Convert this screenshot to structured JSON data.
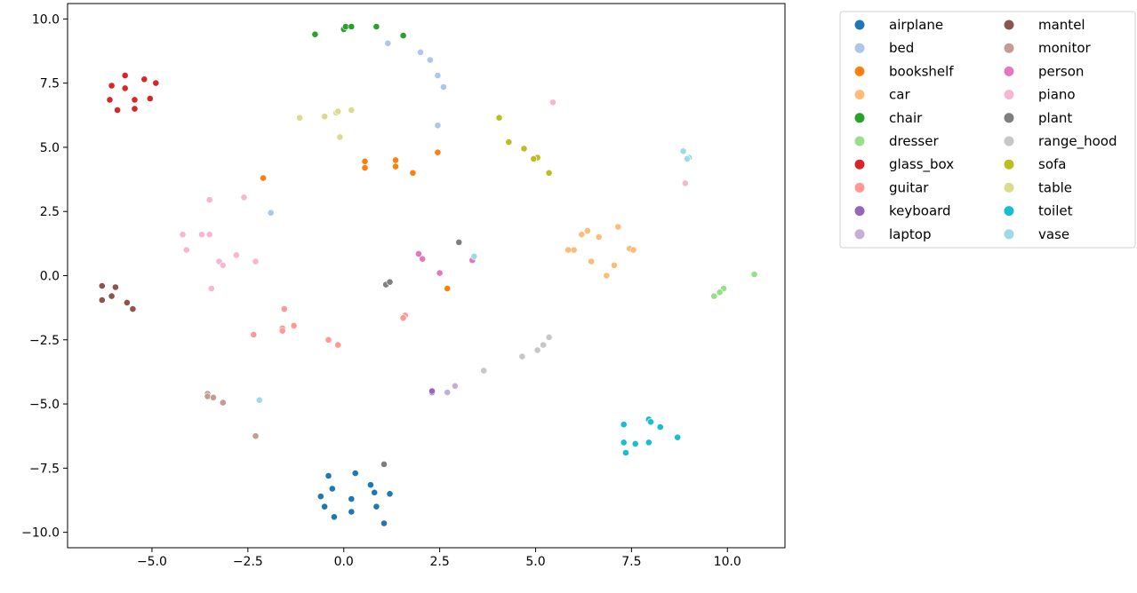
{
  "chart_data": {
    "type": "scatter",
    "title": "",
    "xlabel": "",
    "ylabel": "",
    "xlim": [
      -7.2,
      11.5
    ],
    "ylim": [
      -10.6,
      10.6
    ],
    "x_ticks": [
      -5.0,
      -2.5,
      0.0,
      2.5,
      5.0,
      7.5,
      10.0
    ],
    "x_tick_labels": [
      "−5.0",
      "−2.5",
      "0.0",
      "2.5",
      "5.0",
      "7.5",
      "10.0"
    ],
    "y_ticks": [
      10.0,
      7.5,
      5.0,
      2.5,
      0.0,
      -2.5,
      -5.0,
      -7.5,
      -10.0
    ],
    "y_tick_labels": [
      "10.0",
      "7.5",
      "5.0",
      "2.5",
      "0.0",
      "−2.5",
      "−5.0",
      "−7.5",
      "−10.0"
    ],
    "grid": false,
    "legend_position": "outside right top",
    "legend_columns": 2,
    "series": [
      {
        "name": "airplane",
        "color": "#1f77b4",
        "points": [
          [
            -0.4,
            -7.8
          ],
          [
            0.3,
            -7.7
          ],
          [
            -0.3,
            -8.3
          ],
          [
            0.7,
            -8.15
          ],
          [
            0.8,
            -8.45
          ],
          [
            1.2,
            -8.5
          ],
          [
            -0.6,
            -8.6
          ],
          [
            0.2,
            -8.7
          ],
          [
            -0.5,
            -9.0
          ],
          [
            0.85,
            -9.0
          ],
          [
            0.2,
            -9.2
          ],
          [
            -0.25,
            -9.4
          ],
          [
            1.05,
            -9.65
          ]
        ]
      },
      {
        "name": "bed",
        "color": "#aec7e8",
        "points": [
          [
            1.15,
            9.05
          ],
          [
            2.0,
            8.7
          ],
          [
            2.25,
            8.4
          ],
          [
            2.45,
            7.8
          ],
          [
            2.6,
            7.35
          ],
          [
            2.45,
            5.85
          ],
          [
            -1.9,
            2.45
          ]
        ]
      },
      {
        "name": "bookshelf",
        "color": "#ff7f0e",
        "points": [
          [
            0.55,
            4.45
          ],
          [
            0.55,
            4.2
          ],
          [
            1.35,
            4.5
          ],
          [
            1.35,
            4.25
          ],
          [
            1.8,
            4.0
          ],
          [
            2.45,
            4.8
          ],
          [
            -2.1,
            3.8
          ],
          [
            2.7,
            -0.5
          ]
        ]
      },
      {
        "name": "car",
        "color": "#ffbb78",
        "points": [
          [
            7.15,
            1.9
          ],
          [
            6.35,
            1.75
          ],
          [
            6.2,
            1.6
          ],
          [
            6.65,
            1.5
          ],
          [
            6.0,
            1.0
          ],
          [
            5.85,
            1.0
          ],
          [
            7.45,
            1.05
          ],
          [
            7.55,
            1.0
          ],
          [
            6.45,
            0.55
          ],
          [
            7.05,
            0.4
          ],
          [
            6.85,
            0.0
          ]
        ]
      },
      {
        "name": "chair",
        "color": "#2ca02c",
        "points": [
          [
            -0.75,
            9.4
          ],
          [
            0.0,
            9.6
          ],
          [
            0.05,
            9.7
          ],
          [
            0.2,
            9.7
          ],
          [
            0.85,
            9.7
          ],
          [
            1.55,
            9.35
          ]
        ]
      },
      {
        "name": "dresser",
        "color": "#98df8a",
        "points": [
          [
            10.7,
            0.05
          ],
          [
            9.9,
            -0.5
          ],
          [
            9.8,
            -0.65
          ],
          [
            9.65,
            -0.8
          ]
        ]
      },
      {
        "name": "glass_box",
        "color": "#d62728",
        "points": [
          [
            -5.7,
            7.8
          ],
          [
            -5.2,
            7.65
          ],
          [
            -4.9,
            7.5
          ],
          [
            -6.05,
            7.4
          ],
          [
            -5.7,
            7.3
          ],
          [
            -6.1,
            6.85
          ],
          [
            -5.45,
            6.85
          ],
          [
            -5.05,
            6.9
          ],
          [
            -5.9,
            6.45
          ],
          [
            -5.45,
            6.5
          ]
        ]
      },
      {
        "name": "guitar",
        "color": "#ff9896",
        "points": [
          [
            -1.55,
            -1.3
          ],
          [
            -1.3,
            -1.95
          ],
          [
            -1.6,
            -2.05
          ],
          [
            -1.6,
            -2.15
          ],
          [
            -2.35,
            -2.3
          ],
          [
            -0.4,
            -2.5
          ],
          [
            -0.15,
            -2.7
          ],
          [
            1.6,
            -1.55
          ],
          [
            1.55,
            -1.65
          ]
        ]
      },
      {
        "name": "keyboard",
        "color": "#9467bd",
        "points": [
          [
            2.3,
            -4.55
          ],
          [
            2.3,
            -4.5
          ]
        ]
      },
      {
        "name": "laptop",
        "color": "#c5b0d5",
        "points": [
          [
            2.9,
            -4.3
          ],
          [
            2.7,
            -4.55
          ]
        ]
      },
      {
        "name": "mantel",
        "color": "#8c564b",
        "points": [
          [
            -6.3,
            -0.4
          ],
          [
            -5.95,
            -0.45
          ],
          [
            -6.05,
            -0.8
          ],
          [
            -6.3,
            -0.95
          ],
          [
            -5.65,
            -1.05
          ],
          [
            -5.5,
            -1.3
          ]
        ]
      },
      {
        "name": "monitor",
        "color": "#c49c94",
        "points": [
          [
            -3.55,
            -4.6
          ],
          [
            -3.55,
            -4.7
          ],
          [
            -3.4,
            -4.75
          ],
          [
            -3.15,
            -4.95
          ],
          [
            -2.3,
            -6.25
          ]
        ]
      },
      {
        "name": "person",
        "color": "#e377c2",
        "points": [
          [
            1.95,
            0.85
          ],
          [
            2.05,
            0.65
          ],
          [
            3.35,
            0.6
          ],
          [
            2.5,
            0.1
          ]
        ]
      },
      {
        "name": "piano",
        "color": "#f7b6d2",
        "points": [
          [
            5.45,
            6.75
          ],
          [
            -3.5,
            2.95
          ],
          [
            -2.6,
            3.05
          ],
          [
            -4.2,
            1.6
          ],
          [
            -3.7,
            1.6
          ],
          [
            -3.5,
            1.6
          ],
          [
            -4.1,
            1.0
          ],
          [
            -2.8,
            0.8
          ],
          [
            -3.25,
            0.55
          ],
          [
            -3.15,
            0.4
          ],
          [
            -2.3,
            0.55
          ],
          [
            -3.45,
            -0.5
          ],
          [
            8.9,
            3.6
          ]
        ]
      },
      {
        "name": "plant",
        "color": "#7f7f7f",
        "points": [
          [
            3.0,
            1.3
          ],
          [
            1.1,
            -0.35
          ],
          [
            1.2,
            -0.25
          ],
          [
            1.05,
            -7.35
          ]
        ]
      },
      {
        "name": "range_hood",
        "color": "#c7c7c7",
        "points": [
          [
            5.35,
            -2.4
          ],
          [
            5.2,
            -2.7
          ],
          [
            5.05,
            -2.9
          ],
          [
            4.65,
            -3.15
          ],
          [
            3.65,
            -3.7
          ]
        ]
      },
      {
        "name": "sofa",
        "color": "#bcbd22",
        "points": [
          [
            4.05,
            6.15
          ],
          [
            4.3,
            5.2
          ],
          [
            4.7,
            4.95
          ],
          [
            5.05,
            4.6
          ],
          [
            4.95,
            4.55
          ],
          [
            5.35,
            4.0
          ]
        ]
      },
      {
        "name": "table",
        "color": "#dbdb8d",
        "points": [
          [
            -1.15,
            6.15
          ],
          [
            -0.5,
            6.2
          ],
          [
            -0.2,
            6.35
          ],
          [
            -0.15,
            6.4
          ],
          [
            0.2,
            6.45
          ],
          [
            -0.1,
            5.4
          ]
        ]
      },
      {
        "name": "toilet",
        "color": "#17becf",
        "points": [
          [
            7.95,
            -5.6
          ],
          [
            8.0,
            -5.7
          ],
          [
            7.3,
            -5.8
          ],
          [
            8.25,
            -5.9
          ],
          [
            8.7,
            -6.3
          ],
          [
            7.3,
            -6.5
          ],
          [
            7.95,
            -6.5
          ],
          [
            7.6,
            -6.55
          ],
          [
            7.35,
            -6.9
          ]
        ]
      },
      {
        "name": "vase",
        "color": "#9edae5",
        "points": [
          [
            8.85,
            4.85
          ],
          [
            9.0,
            4.6
          ],
          [
            8.95,
            4.55
          ],
          [
            3.4,
            0.75
          ],
          [
            -2.2,
            -4.85
          ]
        ]
      }
    ]
  }
}
